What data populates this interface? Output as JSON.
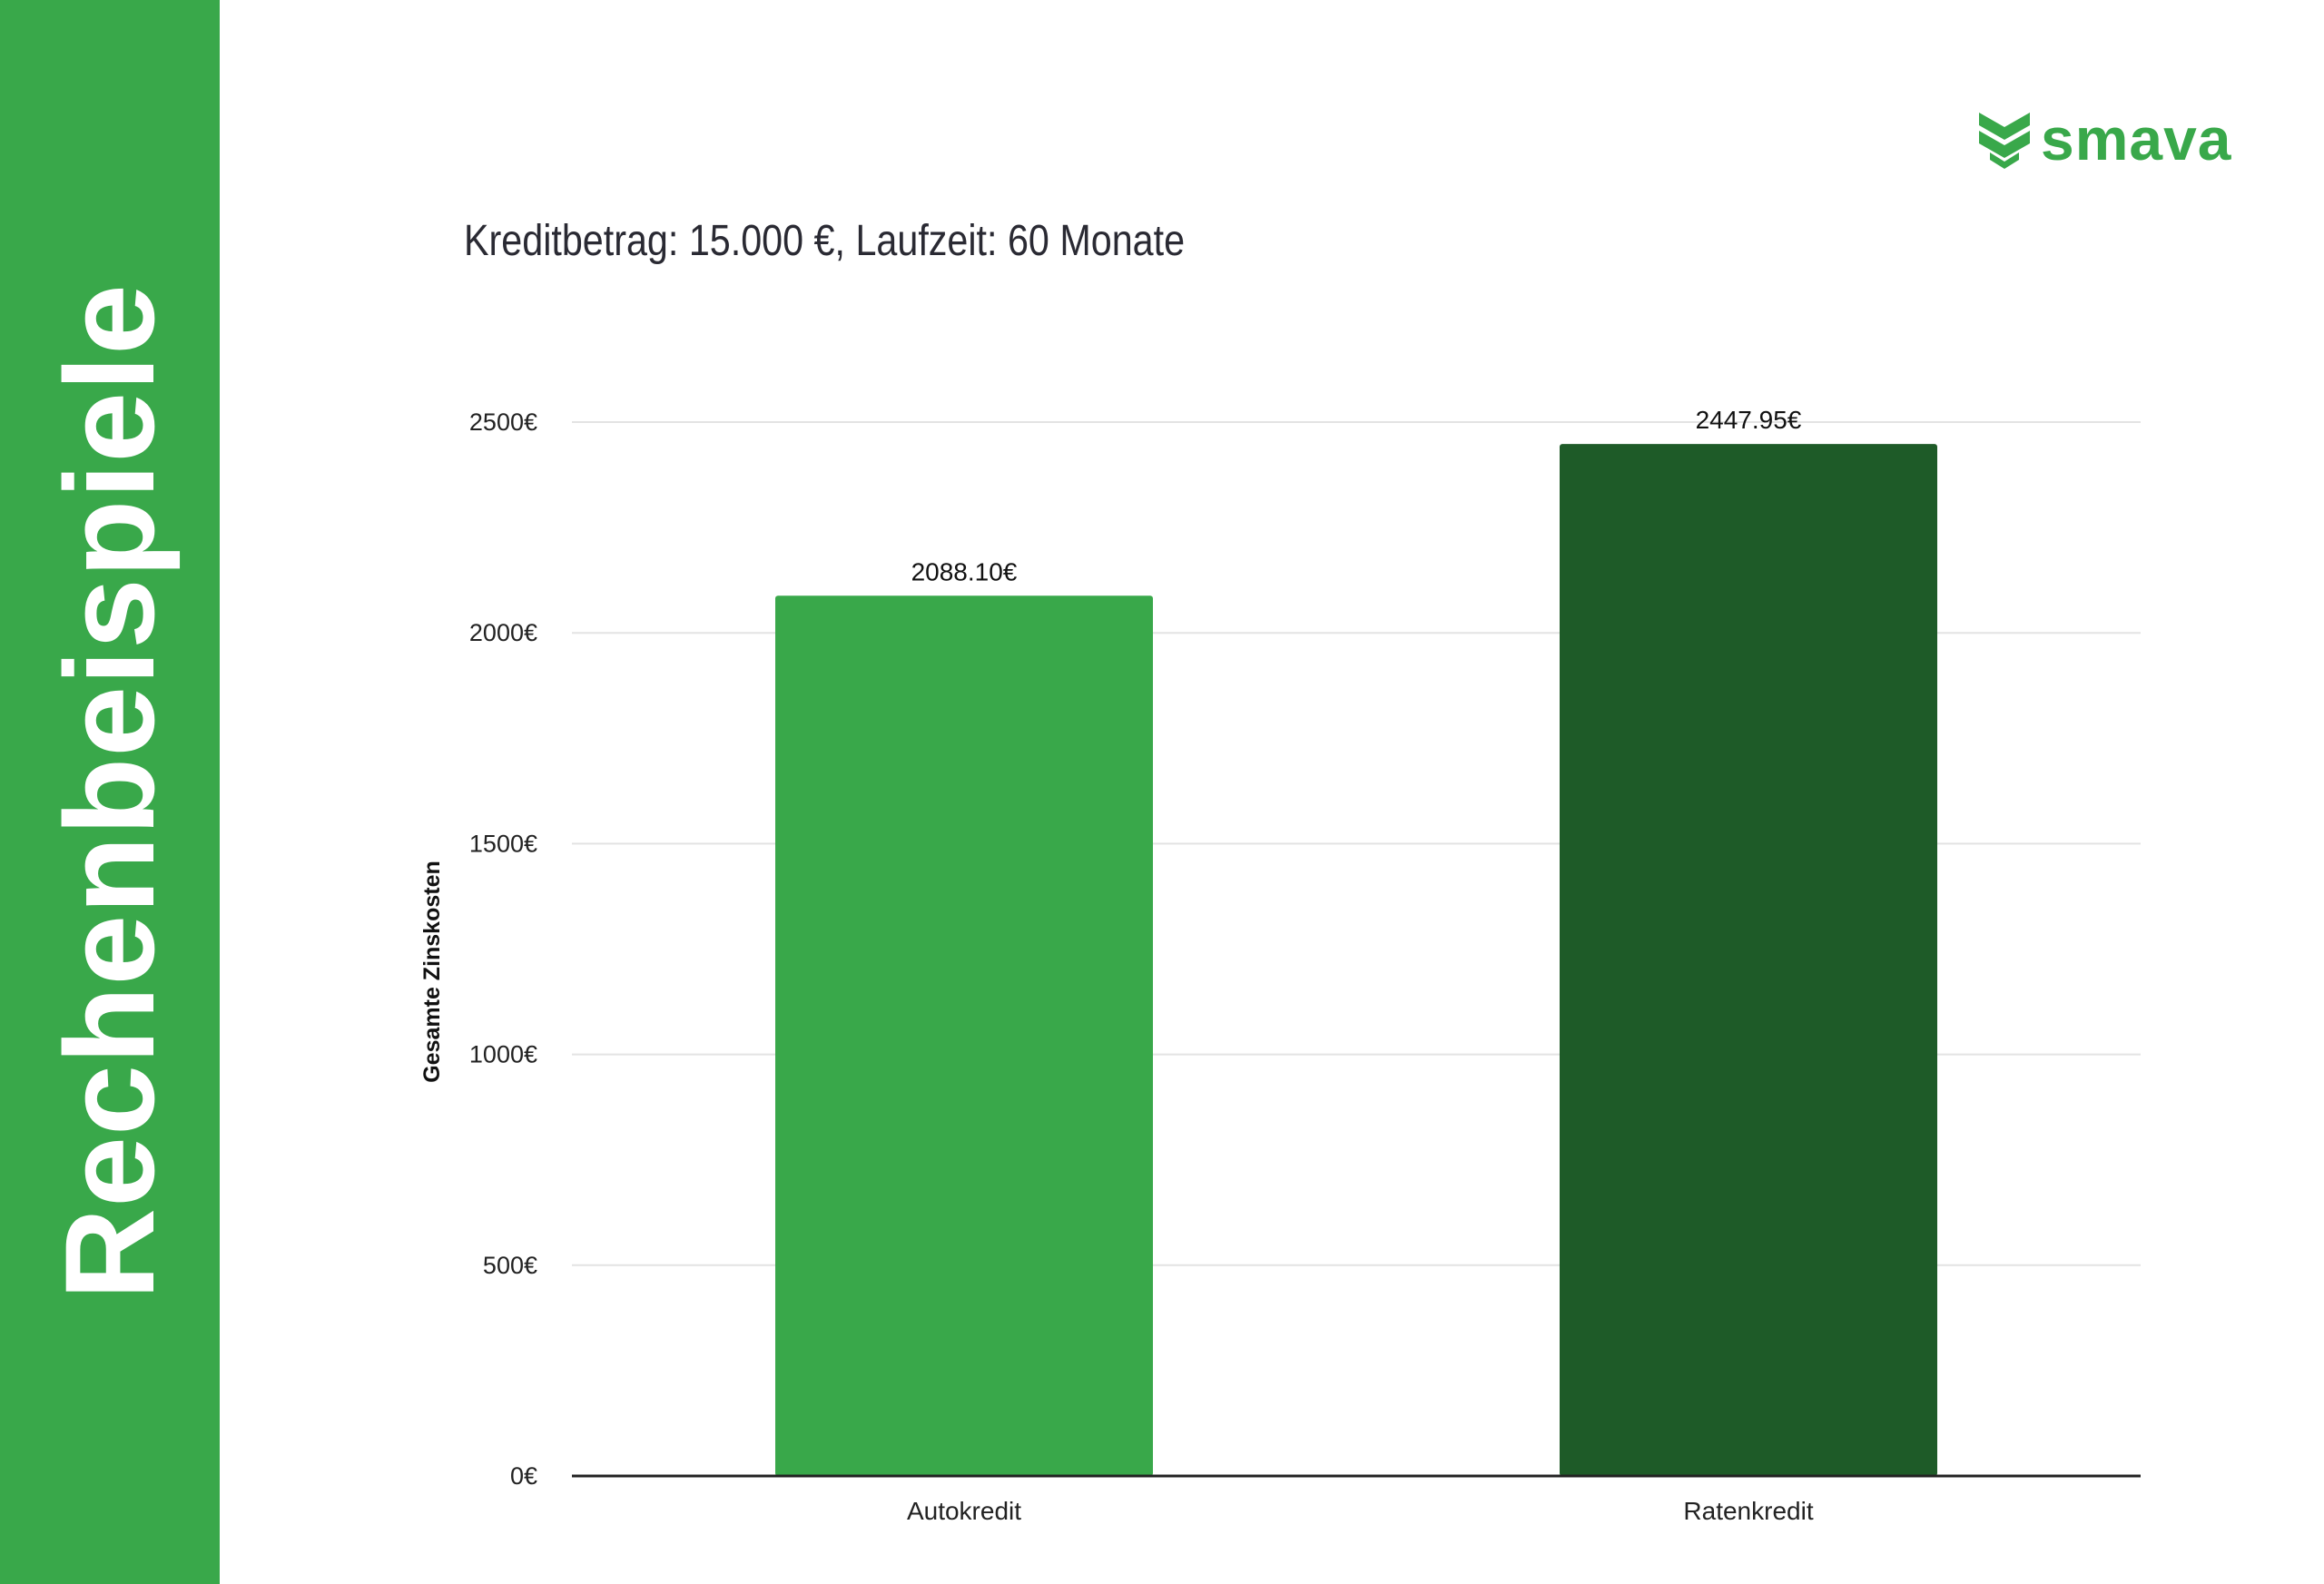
{
  "sidebar": {
    "title": "Rechenbeispiele",
    "color": "#39a84a"
  },
  "logo": {
    "text": "smava",
    "icon": "smava-chevron-icon",
    "color": "#39a84a"
  },
  "chart_data": {
    "type": "bar",
    "title": "Kreditbetrag: 15.000 €, Laufzeit: 60 Monate",
    "xlabel": "",
    "ylabel": "Gesamte Zinskosten",
    "categories": [
      "Autokredit",
      "Ratenkredit"
    ],
    "values": [
      2088.1,
      2447.95
    ],
    "value_labels": [
      "2088.10€",
      "2447.95€"
    ],
    "bar_colors": [
      "#39a84a",
      "#1e5b28"
    ],
    "ylim": [
      0,
      2500
    ],
    "yticks": [
      0,
      500,
      1000,
      1500,
      2000,
      2500
    ],
    "ytick_labels": [
      "0€",
      "500€",
      "1000€",
      "1500€",
      "2000€",
      "2500€"
    ],
    "grid": true,
    "legend": "none"
  }
}
